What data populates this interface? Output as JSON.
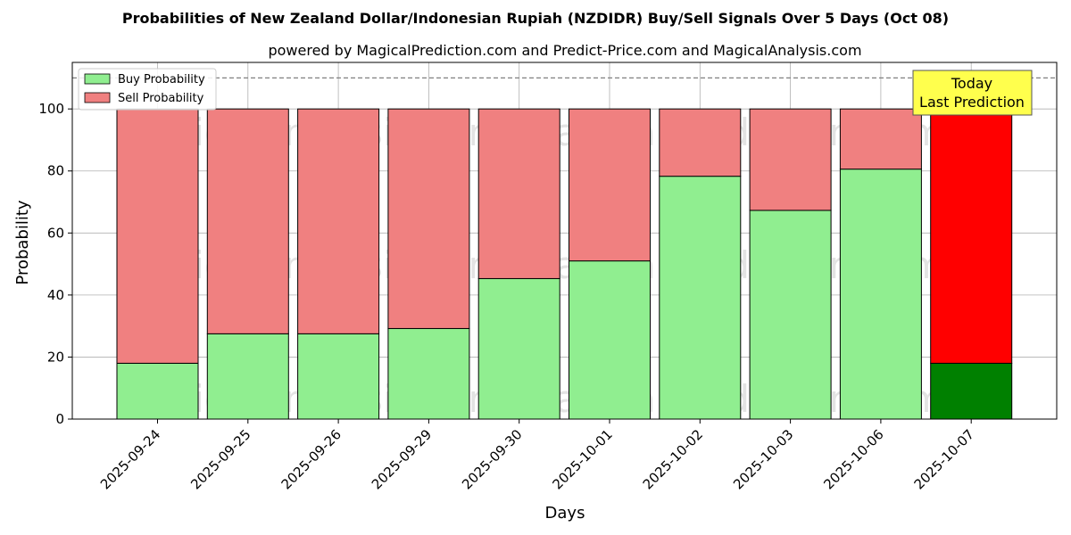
{
  "chart_data": {
    "type": "bar",
    "stacked": true,
    "title": "Probabilities of New Zealand Dollar/Indonesian Rupiah (NZDIDR) Buy/Sell Signals Over 5 Days (Oct 08)",
    "subtitle": "powered by MagicalPrediction.com and Predict-Price.com and MagicalAnalysis.com",
    "xlabel": "Days",
    "ylabel": "Probability",
    "ylim": [
      0,
      115
    ],
    "yticks": [
      0,
      20,
      40,
      60,
      80,
      100
    ],
    "grid": true,
    "legend_position": "top-left",
    "reference_line": 110,
    "categories": [
      "2025-09-24",
      "2025-09-25",
      "2025-09-26",
      "2025-09-29",
      "2025-09-30",
      "2025-10-01",
      "2025-10-02",
      "2025-10-03",
      "2025-10-06",
      "2025-10-07"
    ],
    "series": [
      {
        "name": "Buy Probability",
        "color": "#90ee90",
        "highlight_color": "#008000",
        "values": [
          18.0,
          27.5,
          27.5,
          29.2,
          45.3,
          51.0,
          78.3,
          67.3,
          80.6,
          18.0
        ]
      },
      {
        "name": "Sell Probability",
        "color": "#f08080",
        "highlight_color": "#ff0000",
        "values": [
          82.0,
          72.5,
          72.5,
          70.8,
          54.7,
          49.0,
          21.7,
          32.7,
          19.4,
          82.0
        ]
      }
    ],
    "annotation": {
      "lines": [
        "Today",
        "Last Prediction"
      ],
      "category": "2025-10-07",
      "background": "#ffff4d"
    },
    "watermarks": [
      "MagicalAnalysis.com",
      "MagicalPrediction.com"
    ]
  }
}
